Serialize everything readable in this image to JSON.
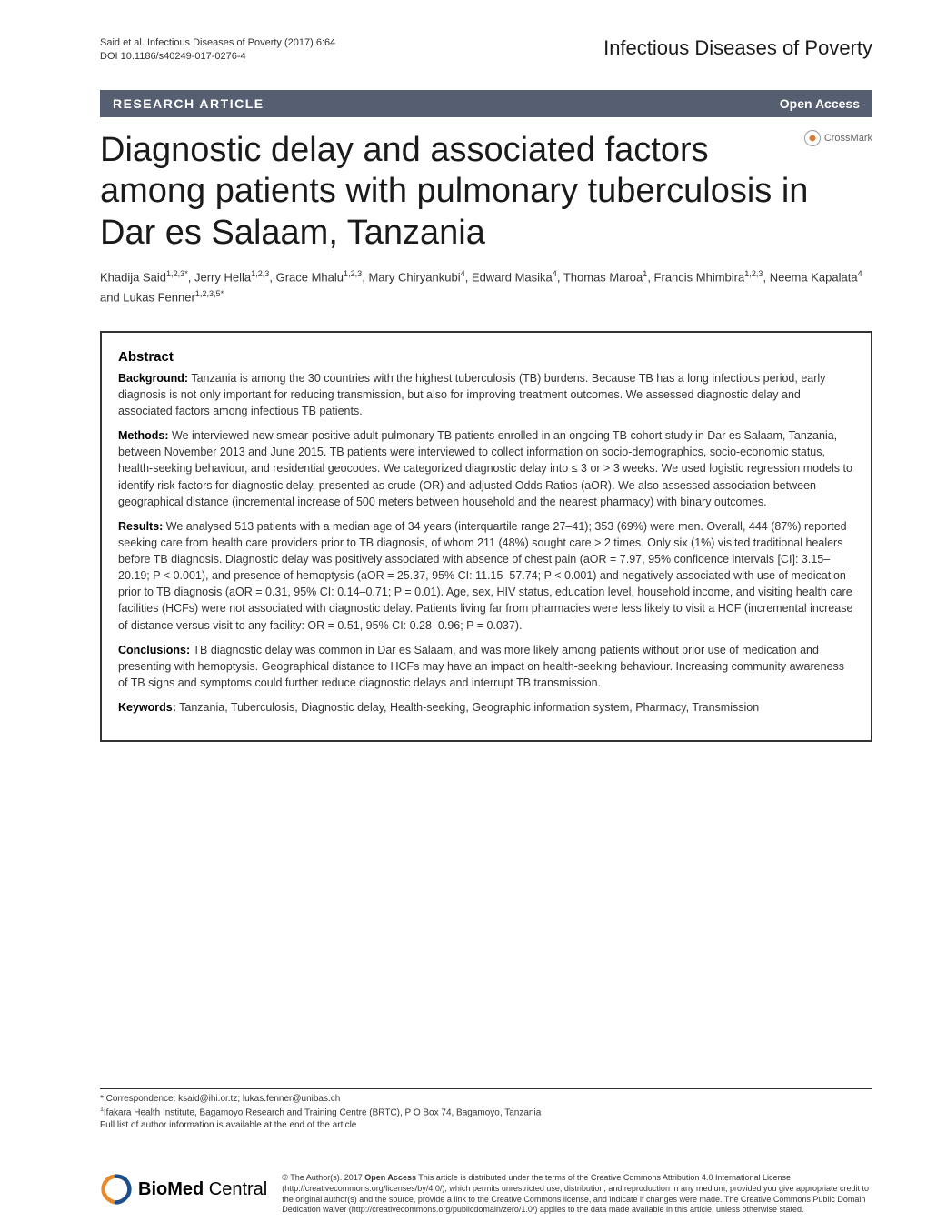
{
  "header": {
    "citation_line1": "Said et al. Infectious Diseases of Poverty (2017) 6:64",
    "citation_line2": "DOI 10.1186/s40249-017-0276-4",
    "journal_name": "Infectious Diseases of Poverty"
  },
  "article_type_bar": {
    "type_label": "RESEARCH ARTICLE",
    "open_access_label": "Open Access"
  },
  "title": "Diagnostic delay and associated factors among patients with pulmonary tuberculosis in Dar es Salaam, Tanzania",
  "crossmark_label": "CrossMark",
  "authors_html": "Khadija Said<sup>1,2,3*</sup>, Jerry Hella<sup>1,2,3</sup>, Grace Mhalu<sup>1,2,3</sup>, Mary Chiryankubi<sup>4</sup>, Edward Masika<sup>4</sup>, Thomas Maroa<sup>1</sup>, Francis Mhimbira<sup>1,2,3</sup>, Neema Kapalata<sup>4</sup> and Lukas Fenner<sup>1,2,3,5*</sup>",
  "abstract": {
    "heading": "Abstract",
    "background_label": "Background:",
    "background_text": " Tanzania is among the 30 countries with the highest tuberculosis (TB) burdens. Because TB has a long infectious period, early diagnosis is not only important for reducing transmission, but also for improving treatment outcomes. We assessed diagnostic delay and associated factors among infectious TB patients.",
    "methods_label": "Methods:",
    "methods_text": " We interviewed new smear-positive adult pulmonary TB patients enrolled in an ongoing TB cohort study in Dar es Salaam, Tanzania, between November 2013 and June 2015. TB patients were interviewed to collect information on socio-demographics, socio-economic status, health-seeking behaviour, and residential geocodes. We categorized diagnostic delay into ≤ 3 or > 3 weeks. We used logistic regression models to identify risk factors for diagnostic delay, presented as crude (OR) and adjusted Odds Ratios (aOR). We also assessed association between geographical distance (incremental increase of 500 meters between household and the nearest pharmacy) with binary outcomes.",
    "results_label": "Results:",
    "results_text": " We analysed 513 patients with a median age of 34 years (interquartile range 27–41); 353 (69%) were men. Overall, 444 (87%) reported seeking care from health care providers prior to TB diagnosis, of whom 211 (48%) sought care > 2 times. Only six (1%) visited traditional healers before TB diagnosis. Diagnostic delay was positively associated with absence of chest pain (aOR = 7.97, 95% confidence intervals [CI]: 3.15–20.19; P < 0.001), and presence of hemoptysis (aOR = 25.37, 95% CI: 11.15–57.74; P < 0.001) and negatively associated with use of medication prior to TB diagnosis (aOR = 0.31, 95% CI: 0.14–0.71; P = 0.01). Age, sex, HIV status, education level, household income, and visiting health care facilities (HCFs) were not associated with diagnostic delay. Patients living far from pharmacies were less likely to visit a HCF (incremental increase of distance versus visit to any facility: OR = 0.51, 95% CI: 0.28–0.96; P = 0.037).",
    "conclusions_label": "Conclusions:",
    "conclusions_text": " TB diagnostic delay was common in Dar es Salaam, and was more likely among patients without prior use of medication and presenting with hemoptysis. Geographical distance to HCFs may have an impact on health-seeking behaviour. Increasing community awareness of TB signs and symptoms could further reduce diagnostic delays and interrupt TB transmission.",
    "keywords_label": "Keywords:",
    "keywords_text": " Tanzania, Tuberculosis, Diagnostic delay, Health-seeking, Geographic information system, Pharmacy, Transmission"
  },
  "correspondence": {
    "line1": "* Correspondence: ksaid@ihi.or.tz; lukas.fenner@unibas.ch",
    "line2_html": "<sup>1</sup>Ifakara Health Institute, Bagamoyo Research and Training Centre (BRTC), P O Box 74, Bagamoyo, Tanzania",
    "line3": "Full list of author information is available at the end of the article"
  },
  "footer": {
    "bmc_bold": "BioMed",
    "bmc_rest": " Central",
    "license_html": "© The Author(s). 2017 <b>Open Access</b> This article is distributed under the terms of the Creative Commons Attribution 4.0 International License (http://creativecommons.org/licenses/by/4.0/), which permits unrestricted use, distribution, and reproduction in any medium, provided you give appropriate credit to the original author(s) and the source, provide a link to the Creative Commons license, and indicate if changes were made. The Creative Commons Public Domain Dedication waiver (http://creativecommons.org/publicdomain/zero/1.0/) applies to the data made available in this article, unless otherwise stated."
  },
  "colors": {
    "bar_bg": "#565f71",
    "bmc_orange": "#e78a2e",
    "bmc_blue": "#1d4f8b"
  }
}
